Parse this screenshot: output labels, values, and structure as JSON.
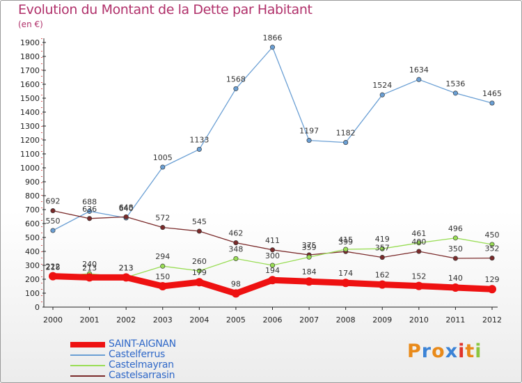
{
  "header": {
    "title": "Evolution du Montant de la Dette par Habitant",
    "unit": "(en €)"
  },
  "chart_data": {
    "type": "line",
    "title": "Evolution du Montant de la Dette par Habitant",
    "ylabel": "(en €)",
    "xlabel": "",
    "ylim": [
      0,
      1900
    ],
    "yticks": [
      0,
      100,
      200,
      300,
      400,
      500,
      600,
      700,
      800,
      900,
      1000,
      1100,
      1200,
      1300,
      1400,
      1500,
      1600,
      1700,
      1800,
      1900
    ],
    "categories": [
      "2000",
      "2001",
      "2002",
      "2003",
      "2004",
      "2005",
      "2006",
      "2007",
      "2008",
      "2009",
      "2010",
      "2011",
      "2012"
    ],
    "grid": false,
    "legend_position": "bottom-left",
    "series": [
      {
        "name": "SAINT-AIGNAN",
        "color": "#ee1111",
        "values": [
          222,
          213,
          213,
          150,
          179,
          98,
          194,
          184,
          174,
          162,
          152,
          140,
          129
        ]
      },
      {
        "name": "Castelferrus",
        "color": "#6a9fd4",
        "values": [
          550,
          688,
          640,
          1005,
          1133,
          1568,
          1866,
          1197,
          1182,
          1524,
          1634,
          1536,
          1465
        ]
      },
      {
        "name": "Castelmayran",
        "color": "#99dd55",
        "values": [
          218,
          240,
          213,
          294,
          260,
          348,
          300,
          359,
          415,
          419,
          461,
          496,
          450
        ]
      },
      {
        "name": "Castelsarrasin",
        "color": "#7a2a2a",
        "values": [
          692,
          636,
          648,
          572,
          545,
          462,
          411,
          375,
          399,
          357,
          400,
          350,
          352
        ]
      }
    ]
  },
  "logo": {
    "text": "Proxiti",
    "letters": [
      {
        "ch": "P",
        "color": "#e98a1a"
      },
      {
        "ch": "r",
        "color": "#3b83d6"
      },
      {
        "ch": "o",
        "color": "#e98a1a"
      },
      {
        "ch": "x",
        "color": "#3b83d6"
      },
      {
        "ch": "i",
        "color": "#e0332a"
      },
      {
        "ch": "t",
        "color": "#e98a1a"
      },
      {
        "ch": "i",
        "color": "#8cc63f"
      }
    ]
  }
}
